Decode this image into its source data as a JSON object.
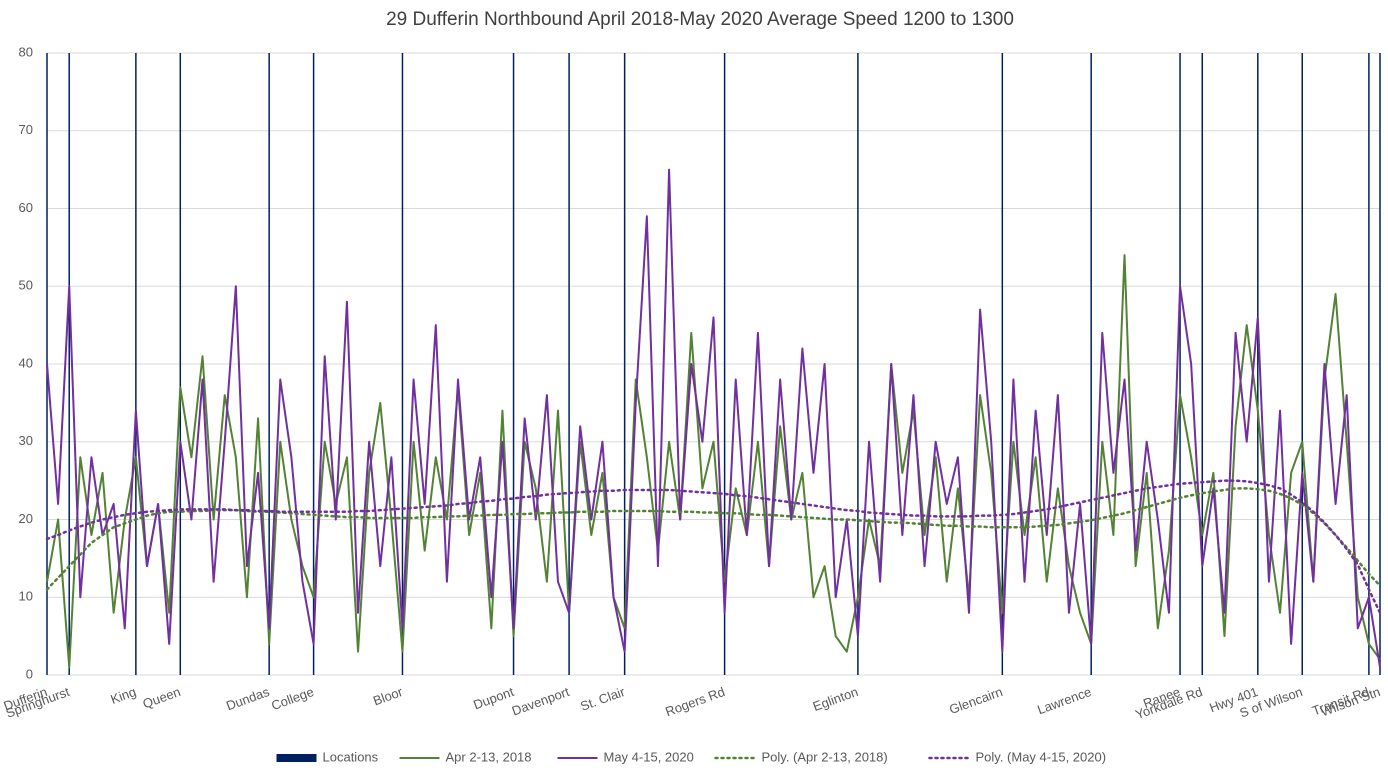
{
  "chart_data": {
    "type": "line",
    "title": "29 Dufferin Northbound April 2018-May 2020 Average Speed 1200 to 1300",
    "categories": [
      "Dufferin",
      null,
      "Springhurst",
      null,
      null,
      null,
      null,
      null,
      "King",
      null,
      null,
      null,
      "Queen",
      null,
      null,
      null,
      null,
      null,
      null,
      null,
      "Dundas",
      null,
      null,
      null,
      "College",
      null,
      null,
      null,
      null,
      null,
      null,
      null,
      "Bloor",
      null,
      null,
      null,
      null,
      null,
      null,
      null,
      null,
      null,
      "Dupont",
      null,
      null,
      null,
      null,
      "Davenport",
      null,
      null,
      null,
      null,
      "St. Clair",
      null,
      null,
      null,
      null,
      null,
      null,
      null,
      null,
      "Rogers Rd",
      null,
      null,
      null,
      null,
      null,
      null,
      null,
      null,
      null,
      null,
      null,
      "Eglinton",
      null,
      null,
      null,
      null,
      null,
      null,
      null,
      null,
      null,
      null,
      null,
      null,
      "Glencairn",
      null,
      null,
      null,
      null,
      null,
      null,
      null,
      "Lawrence",
      null,
      null,
      null,
      null,
      null,
      null,
      null,
      "Ranee",
      null,
      "Yorkdale Rd",
      null,
      null,
      null,
      null,
      "Hwy 401",
      null,
      null,
      null,
      "S of Wilson",
      null,
      null,
      null,
      null,
      null,
      "Transit Rd",
      "Wilson Stn"
    ],
    "ylim": [
      0,
      80
    ],
    "yticks": [
      0,
      10,
      20,
      30,
      40,
      50,
      60,
      70,
      80
    ],
    "grid": true,
    "legend": "bottom",
    "series": [
      {
        "name": "Locations",
        "type": "bar",
        "color": "#002060",
        "values": [
          80,
          null,
          80,
          null,
          null,
          null,
          null,
          null,
          80,
          null,
          null,
          null,
          80,
          null,
          null,
          null,
          null,
          null,
          null,
          null,
          80,
          null,
          null,
          null,
          80,
          null,
          null,
          null,
          null,
          null,
          null,
          null,
          80,
          null,
          null,
          null,
          null,
          null,
          null,
          null,
          null,
          null,
          80,
          null,
          null,
          null,
          null,
          80,
          null,
          null,
          null,
          null,
          80,
          null,
          null,
          null,
          null,
          null,
          null,
          null,
          null,
          80,
          null,
          null,
          null,
          null,
          null,
          null,
          null,
          null,
          null,
          null,
          null,
          80,
          null,
          null,
          null,
          null,
          null,
          null,
          null,
          null,
          null,
          null,
          null,
          null,
          80,
          null,
          null,
          null,
          null,
          null,
          null,
          null,
          80,
          null,
          null,
          null,
          null,
          null,
          null,
          null,
          80,
          null,
          80,
          null,
          null,
          null,
          null,
          80,
          null,
          null,
          null,
          80,
          null,
          null,
          null,
          null,
          null,
          80,
          80
        ]
      },
      {
        "name": "Apr 2-13, 2018",
        "type": "line",
        "color": "#548235",
        "dash": "solid",
        "values": [
          12,
          20,
          1,
          28,
          18,
          26,
          8,
          20,
          28,
          14,
          22,
          8,
          37,
          28,
          41,
          20,
          36,
          28,
          10,
          33,
          4,
          30,
          20,
          14,
          10,
          30,
          22,
          28,
          3,
          26,
          35,
          20,
          3,
          30,
          16,
          28,
          20,
          37,
          18,
          26,
          6,
          34,
          5,
          30,
          24,
          12,
          34,
          8,
          30,
          18,
          26,
          10,
          6,
          38,
          28,
          16,
          30,
          20,
          44,
          24,
          30,
          12,
          24,
          18,
          30,
          14,
          32,
          20,
          26,
          10,
          14,
          5,
          3,
          10,
          20,
          14,
          40,
          26,
          34,
          18,
          28,
          12,
          24,
          10,
          36,
          26,
          8,
          30,
          18,
          28,
          12,
          24,
          14,
          8,
          4,
          30,
          18,
          54,
          14,
          26,
          6,
          16,
          36,
          28,
          18,
          26,
          5,
          32,
          45,
          34,
          18,
          8,
          26,
          30,
          12,
          38,
          49,
          30,
          10,
          4,
          2
        ]
      },
      {
        "name": "May 4-15, 2020",
        "type": "line",
        "color": "#7030a0",
        "dash": "solid",
        "values": [
          40,
          22,
          50,
          10,
          28,
          18,
          22,
          6,
          34,
          14,
          22,
          4,
          30,
          20,
          38,
          12,
          30,
          50,
          14,
          26,
          6,
          38,
          28,
          12,
          4,
          41,
          20,
          48,
          8,
          30,
          14,
          28,
          6,
          38,
          22,
          45,
          12,
          38,
          20,
          28,
          10,
          30,
          6,
          33,
          20,
          36,
          12,
          8,
          32,
          20,
          30,
          10,
          3,
          35,
          59,
          14,
          65,
          20,
          40,
          30,
          46,
          8,
          38,
          18,
          44,
          14,
          38,
          20,
          42,
          26,
          40,
          10,
          20,
          5,
          30,
          12,
          40,
          18,
          36,
          14,
          30,
          22,
          28,
          8,
          47,
          30,
          3,
          38,
          12,
          34,
          18,
          36,
          8,
          22,
          4,
          44,
          26,
          38,
          16,
          30,
          20,
          8,
          50,
          40,
          14,
          24,
          8,
          44,
          30,
          46,
          12,
          34,
          4,
          26,
          12,
          40,
          22,
          36,
          6,
          10,
          1
        ]
      },
      {
        "name": "Poly. (Apr 2-13, 2018)",
        "type": "line",
        "color": "#548235",
        "dash": "dotted",
        "values": [
          11,
          12.5,
          14,
          15.5,
          17,
          18,
          19,
          19.5,
          20,
          20.5,
          20.8,
          21,
          21,
          21.1,
          21.1,
          21.2,
          21.2,
          21.2,
          21.1,
          21,
          21,
          20.9,
          20.8,
          20.7,
          20.6,
          20.5,
          20.4,
          20.3,
          20.3,
          20.2,
          20.2,
          20.2,
          20.2,
          20.2,
          20.3,
          20.3,
          20.4,
          20.4,
          20.5,
          20.5,
          20.6,
          20.6,
          20.7,
          20.7,
          20.8,
          20.8,
          20.9,
          20.9,
          21,
          21,
          21,
          21.1,
          21.1,
          21.1,
          21.1,
          21.1,
          21,
          21,
          21,
          20.9,
          20.9,
          20.8,
          20.8,
          20.7,
          20.6,
          20.6,
          20.5,
          20.4,
          20.3,
          20.2,
          20.1,
          20,
          20,
          19.9,
          19.8,
          19.7,
          19.6,
          19.6,
          19.5,
          19.4,
          19.3,
          19.2,
          19.2,
          19.1,
          19.1,
          19,
          19,
          19,
          19,
          19.1,
          19.2,
          19.3,
          19.5,
          19.7,
          19.9,
          20.2,
          20.5,
          20.8,
          21.2,
          21.6,
          22,
          22.4,
          22.8,
          23.1,
          23.4,
          23.6,
          23.8,
          24,
          24,
          23.9,
          23.7,
          23.3,
          22.7,
          21.9,
          20.8,
          19.5,
          18,
          16.4,
          14.7,
          13,
          11.5
        ]
      },
      {
        "name": "Poly. (May 4-15, 2020)",
        "type": "line",
        "color": "#7030a0",
        "dash": "dotted",
        "values": [
          17.5,
          18,
          18.6,
          19.1,
          19.6,
          20,
          20.3,
          20.6,
          20.8,
          21,
          21.1,
          21.2,
          21.3,
          21.3,
          21.3,
          21.3,
          21.3,
          21.2,
          21.2,
          21.1,
          21.1,
          21,
          21,
          21,
          21,
          21,
          21,
          21,
          21.1,
          21.1,
          21.2,
          21.3,
          21.4,
          21.5,
          21.6,
          21.7,
          21.8,
          22,
          22.1,
          22.3,
          22.4,
          22.6,
          22.7,
          22.9,
          23,
          23.2,
          23.3,
          23.4,
          23.5,
          23.6,
          23.7,
          23.7,
          23.8,
          23.8,
          23.8,
          23.8,
          23.8,
          23.7,
          23.6,
          23.5,
          23.4,
          23.3,
          23.1,
          23,
          22.8,
          22.6,
          22.4,
          22.2,
          22,
          21.8,
          21.6,
          21.4,
          21.2,
          21.1,
          20.9,
          20.8,
          20.7,
          20.6,
          20.5,
          20.5,
          20.4,
          20.4,
          20.4,
          20.4,
          20.5,
          20.5,
          20.6,
          20.7,
          20.9,
          21.1,
          21.3,
          21.6,
          21.9,
          22.2,
          22.5,
          22.8,
          23.1,
          23.4,
          23.7,
          24,
          24.2,
          24.4,
          24.6,
          24.7,
          24.8,
          24.9,
          25,
          25,
          24.9,
          24.7,
          24.4,
          24,
          23.2,
          22.2,
          21,
          19.6,
          18,
          16.2,
          14.2,
          11,
          8
        ]
      }
    ]
  }
}
